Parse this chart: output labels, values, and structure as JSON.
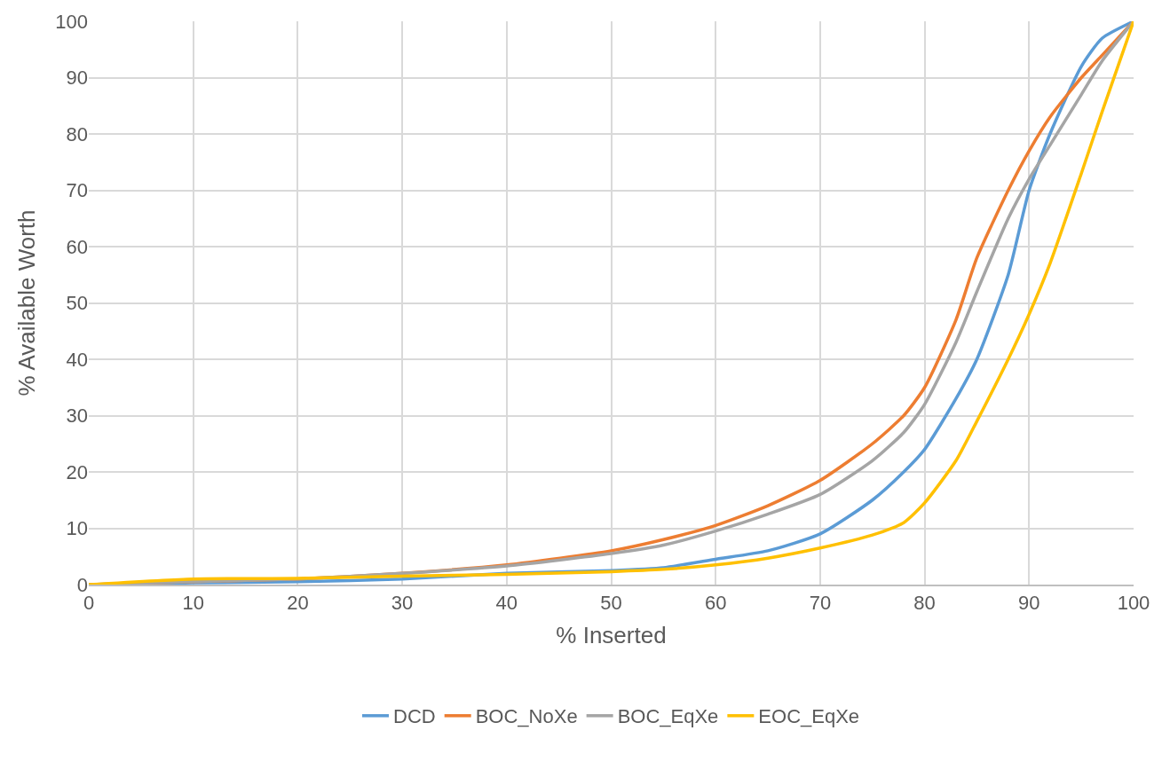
{
  "chart_data": {
    "type": "line",
    "xlabel": "% Inserted",
    "ylabel": "% Available Worth",
    "x": [
      0,
      10,
      20,
      30,
      40,
      50,
      55,
      60,
      65,
      70,
      75,
      78,
      80,
      83,
      85,
      88,
      90,
      92,
      95,
      97,
      100
    ],
    "series": [
      {
        "name": "DCD",
        "color": "#5b9bd5",
        "values": [
          0,
          0.3,
          0.5,
          1,
          2,
          2.5,
          3,
          4.5,
          6,
          9,
          15,
          20,
          24,
          33,
          40,
          55,
          70,
          80,
          92,
          97,
          100
        ]
      },
      {
        "name": "BOC_NoXe",
        "color": "#ed7d31",
        "values": [
          0,
          0.5,
          1,
          2,
          3.5,
          6,
          8,
          10.5,
          14,
          18.5,
          25,
          30,
          35,
          47,
          58,
          70,
          77,
          83,
          90,
          94,
          100
        ]
      },
      {
        "name": "BOC_EqXe",
        "color": "#a5a5a5",
        "values": [
          0,
          0.5,
          1,
          2,
          3.3,
          5.5,
          7,
          9.5,
          12.5,
          16,
          22,
          27,
          32,
          43,
          52,
          65,
          72,
          78,
          87,
          93,
          100
        ]
      },
      {
        "name": "EOC_EqXe",
        "color": "#ffc000",
        "values": [
          0,
          1,
          1.1,
          1.5,
          1.8,
          2.3,
          2.7,
          3.5,
          4.7,
          6.5,
          8.8,
          11,
          14.5,
          22,
          29,
          40,
          48,
          57,
          73,
          84,
          100
        ]
      }
    ],
    "xlim": [
      0,
      100
    ],
    "xticks": [
      0,
      10,
      20,
      30,
      40,
      50,
      60,
      70,
      80,
      90,
      100
    ],
    "ylim": [
      0,
      100
    ],
    "yticks": [
      0,
      10,
      20,
      30,
      40,
      50,
      60,
      70,
      80,
      90,
      100
    ],
    "grid": true,
    "legend": "bottom",
    "marker": "none",
    "line_style": "solid"
  }
}
